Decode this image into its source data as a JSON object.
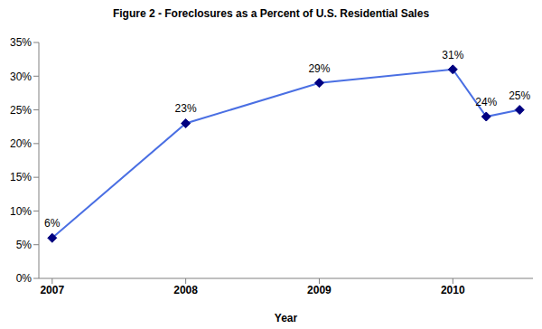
{
  "chart_data": {
    "type": "line",
    "title": "Figure 2 - Foreclosures as a Percent of U.S. Residential Sales",
    "x_label": "Year",
    "x": [
      2007,
      2008,
      2009,
      2010,
      2010.25,
      2010.5
    ],
    "values": [
      6,
      23,
      29,
      31,
      24,
      25
    ],
    "value_labels": [
      "6%",
      "23%",
      "29%",
      "31%",
      "24%",
      "25%"
    ],
    "data_labels": true,
    "color": "#4a6fe3",
    "marker": "diamond",
    "xlim": [
      2006.9,
      2010.6
    ],
    "xticks": [
      2007,
      2008,
      2009,
      2010
    ],
    "ylim": [
      0,
      35
    ],
    "yticks": [
      {
        "value": 0,
        "label": "0%"
      },
      {
        "value": 5,
        "label": "5%"
      },
      {
        "value": 10,
        "label": "10%"
      },
      {
        "value": 15,
        "label": "15%"
      },
      {
        "value": 20,
        "label": "20%"
      },
      {
        "value": 25,
        "label": "25%"
      },
      {
        "value": 30,
        "label": "30%"
      },
      {
        "value": 35,
        "label": "35%"
      }
    ],
    "grid": false
  }
}
